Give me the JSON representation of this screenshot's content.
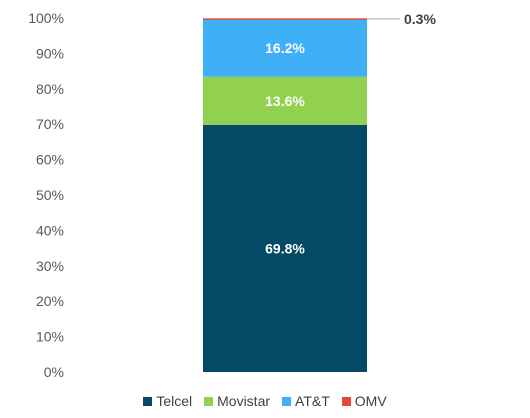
{
  "chart_data": {
    "type": "bar",
    "stacked": true,
    "categories": [
      ""
    ],
    "series": [
      {
        "name": "Telcel",
        "values": [
          69.8
        ],
        "label": "69.8%",
        "color": "#044a66"
      },
      {
        "name": "Movistar",
        "values": [
          13.6
        ],
        "label": "13.6%",
        "color": "#92d050"
      },
      {
        "name": "AT&T",
        "values": [
          16.2
        ],
        "label": "16.2%",
        "color": "#3fb0f5"
      },
      {
        "name": "OMV",
        "values": [
          0.3
        ],
        "label": "0.3%",
        "color": "#e8453c"
      }
    ],
    "ylim": [
      0,
      100
    ],
    "yticks": [
      "0%",
      "10%",
      "20%",
      "30%",
      "40%",
      "50%",
      "60%",
      "70%",
      "80%",
      "90%",
      "100%"
    ],
    "legend_position": "bottom",
    "grid": false,
    "title": "",
    "xlabel": "",
    "ylabel": ""
  }
}
